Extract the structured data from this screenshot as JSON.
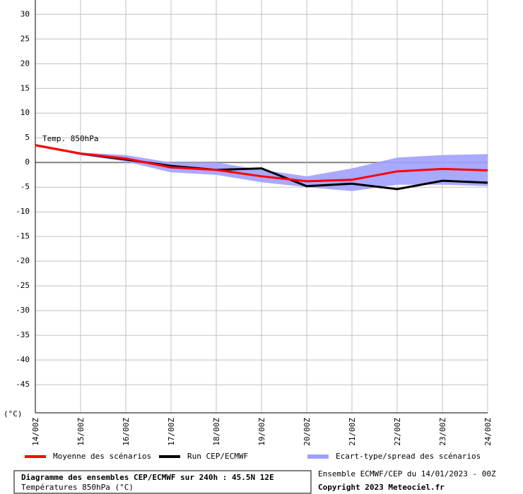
{
  "chart_data": {
    "type": "line",
    "annotation": "Temp. 850hPa",
    "y_unit": "(°C)",
    "categories": [
      "14/00Z",
      "15/00Z",
      "16/00Z",
      "17/00Z",
      "18/00Z",
      "19/00Z",
      "20/00Z",
      "21/00Z",
      "22/00Z",
      "23/00Z",
      "24/00Z"
    ],
    "series": [
      {
        "name": "Moyenne des scénarios",
        "color": "#ff0000",
        "values": [
          3.5,
          1.8,
          0.8,
          -1,
          -1.5,
          -2.8,
          -3.8,
          -3.5,
          -1.8,
          -1.3,
          -1.6
        ]
      },
      {
        "name": "Run CEP/ECMWF",
        "color": "#000000",
        "values": [
          3.5,
          1.8,
          0.6,
          -0.7,
          -1.5,
          -1.2,
          -4.8,
          -4.3,
          -5.4,
          -3.7,
          -4.1
        ]
      },
      {
        "name": "Ecart-type/spread des scénarios",
        "color": "#a0a0ff",
        "upper": [
          3.5,
          2,
          1.5,
          0,
          0,
          -1.5,
          -2.8,
          -1.2,
          1,
          1.5,
          1.7
        ],
        "lower": [
          3.5,
          1.5,
          0.2,
          -2,
          -2.5,
          -4,
          -5,
          -5.8,
          -4.5,
          -4.5,
          -4.8
        ]
      }
    ],
    "ylim": [
      -50.7,
      32.9
    ],
    "yticks": [
      30,
      25,
      20,
      15,
      10,
      5,
      0,
      -5,
      -10,
      -15,
      -20,
      -25,
      -30,
      -35,
      -40,
      -45
    ],
    "grid": true,
    "footer": {
      "title": "Diagramme des ensembles CEP/ECMWF sur 240h : 45.5N 12E",
      "subtitle": "Températures 850hPa (°C)",
      "run": "Ensemble ECMWF/CEP du 14/01/2023 - 00Z",
      "copyright": "Copyright 2023 Meteociel.fr"
    }
  }
}
